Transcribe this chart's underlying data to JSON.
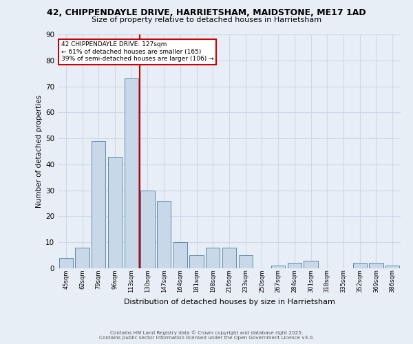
{
  "title_line1": "42, CHIPPENDAYLE DRIVE, HARRIETSHAM, MAIDSTONE, ME17 1AD",
  "title_line2": "Size of property relative to detached houses in Harrietsham",
  "xlabel": "Distribution of detached houses by size in Harrietsham",
  "ylabel": "Number of detached properties",
  "categories": [
    "45sqm",
    "62sqm",
    "79sqm",
    "96sqm",
    "113sqm",
    "130sqm",
    "147sqm",
    "164sqm",
    "181sqm",
    "198sqm",
    "216sqm",
    "233sqm",
    "250sqm",
    "267sqm",
    "284sqm",
    "301sqm",
    "318sqm",
    "335sqm",
    "352sqm",
    "369sqm",
    "386sqm"
  ],
  "values": [
    4,
    8,
    49,
    43,
    73,
    30,
    26,
    10,
    5,
    8,
    8,
    5,
    0,
    1,
    2,
    3,
    0,
    0,
    2,
    2,
    1
  ],
  "bar_color": "#c8d8e8",
  "bar_edge_color": "#5a8ab0",
  "grid_color": "#d0d8e8",
  "background_color": "#e8eef5",
  "vline_color": "#cc0000",
  "annotation_text": "42 CHIPPENDAYLE DRIVE: 127sqm\n← 61% of detached houses are smaller (165)\n39% of semi-detached houses are larger (106) →",
  "annotation_box_color": "#cc0000",
  "ylim": [
    0,
    90
  ],
  "yticks": [
    0,
    10,
    20,
    30,
    40,
    50,
    60,
    70,
    80,
    90
  ],
  "footer_line1": "Contains HM Land Registry data © Crown copyright and database right 2025.",
  "footer_line2": "Contains public sector information licensed under the Open Government Licence v3.0."
}
